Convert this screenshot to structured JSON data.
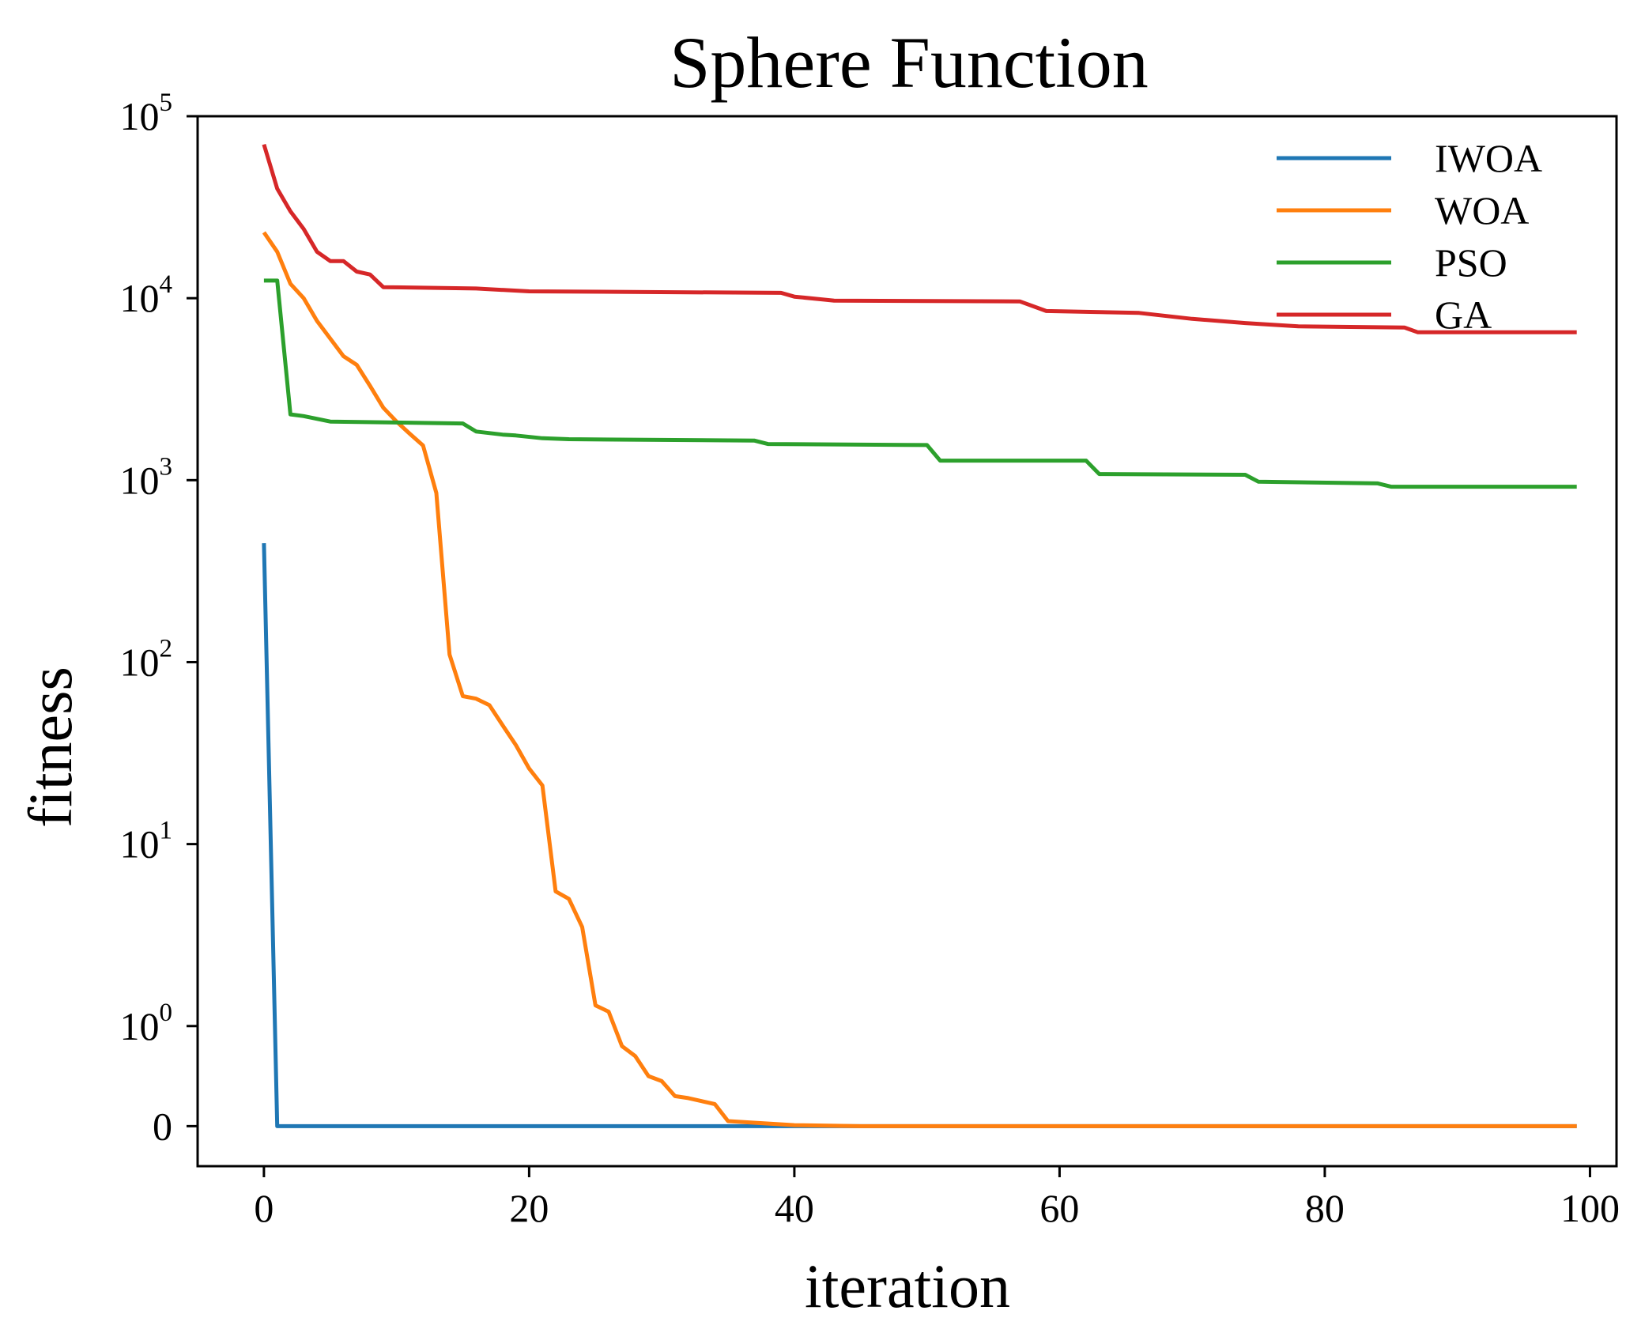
{
  "chart_data": {
    "type": "line",
    "title": "Sphere Function",
    "xlabel": "iteration",
    "ylabel": "fitness",
    "yscale": "symlog",
    "xlim": [
      -5,
      102
    ],
    "ylim": [
      -0.4,
      100000
    ],
    "grid": false,
    "legend_position": "top-right",
    "x_ticks": [
      0,
      20,
      40,
      60,
      80,
      100
    ],
    "y_ticks": [
      {
        "value": 0,
        "base": "0",
        "exp": ""
      },
      {
        "value": 1,
        "base": "10",
        "exp": "0"
      },
      {
        "value": 10,
        "base": "10",
        "exp": "1"
      },
      {
        "value": 100,
        "base": "10",
        "exp": "2"
      },
      {
        "value": 1000,
        "base": "10",
        "exp": "3"
      },
      {
        "value": 10000,
        "base": "10",
        "exp": "4"
      },
      {
        "value": 100000,
        "base": "10",
        "exp": "5"
      }
    ],
    "series": [
      {
        "name": "IWOA",
        "color": "#1f77b4",
        "points": [
          [
            0,
            450
          ],
          [
            1,
            0
          ],
          [
            99,
            0
          ]
        ]
      },
      {
        "name": "WOA",
        "color": "#ff7f0e",
        "points": [
          [
            0,
            23000
          ],
          [
            1,
            18000
          ],
          [
            2,
            12000
          ],
          [
            3,
            10000
          ],
          [
            4,
            7500
          ],
          [
            5,
            6000
          ],
          [
            6,
            4800
          ],
          [
            7,
            4300
          ],
          [
            8,
            3300
          ],
          [
            9,
            2500
          ],
          [
            10,
            2100
          ],
          [
            11,
            1800
          ],
          [
            12,
            1550
          ],
          [
            13,
            850
          ],
          [
            14,
            110
          ],
          [
            15,
            65
          ],
          [
            16,
            63
          ],
          [
            17,
            58
          ],
          [
            18,
            45
          ],
          [
            19,
            35
          ],
          [
            20,
            26
          ],
          [
            21,
            21
          ],
          [
            22,
            5.5
          ],
          [
            23,
            5
          ],
          [
            24,
            3.5
          ],
          [
            25,
            1.3
          ],
          [
            26,
            1.2
          ],
          [
            27,
            0.8
          ],
          [
            28,
            0.7
          ],
          [
            29,
            0.5
          ],
          [
            30,
            0.45
          ],
          [
            31,
            0.3
          ],
          [
            32,
            0.28
          ],
          [
            33,
            0.25
          ],
          [
            34,
            0.22
          ],
          [
            35,
            0.05
          ],
          [
            40,
            0.01
          ],
          [
            45,
            0
          ],
          [
            99,
            0
          ]
        ]
      },
      {
        "name": "PSO",
        "color": "#2ca02c",
        "points": [
          [
            0,
            12500
          ],
          [
            1,
            12500
          ],
          [
            2,
            2300
          ],
          [
            3,
            2250
          ],
          [
            5,
            2100
          ],
          [
            15,
            2050
          ],
          [
            16,
            1850
          ],
          [
            18,
            1780
          ],
          [
            19,
            1760
          ],
          [
            21,
            1700
          ],
          [
            23,
            1680
          ],
          [
            37,
            1650
          ],
          [
            38,
            1580
          ],
          [
            50,
            1560
          ],
          [
            51,
            1280
          ],
          [
            62,
            1280
          ],
          [
            63,
            1080
          ],
          [
            74,
            1070
          ],
          [
            75,
            980
          ],
          [
            84,
            960
          ],
          [
            85,
            920
          ],
          [
            99,
            920
          ]
        ]
      },
      {
        "name": "GA",
        "color": "#d62728",
        "points": [
          [
            0,
            70000
          ],
          [
            1,
            40000
          ],
          [
            2,
            30000
          ],
          [
            3,
            24000
          ],
          [
            4,
            18000
          ],
          [
            5,
            16000
          ],
          [
            6,
            16000
          ],
          [
            7,
            14000
          ],
          [
            8,
            13500
          ],
          [
            9,
            11500
          ],
          [
            16,
            11300
          ],
          [
            20,
            10900
          ],
          [
            39,
            10700
          ],
          [
            40,
            10200
          ],
          [
            43,
            9700
          ],
          [
            57,
            9600
          ],
          [
            59,
            8500
          ],
          [
            66,
            8300
          ],
          [
            70,
            7700
          ],
          [
            74,
            7300
          ],
          [
            78,
            7000
          ],
          [
            86,
            6900
          ],
          [
            87,
            6500
          ],
          [
            99,
            6500
          ]
        ]
      }
    ]
  }
}
